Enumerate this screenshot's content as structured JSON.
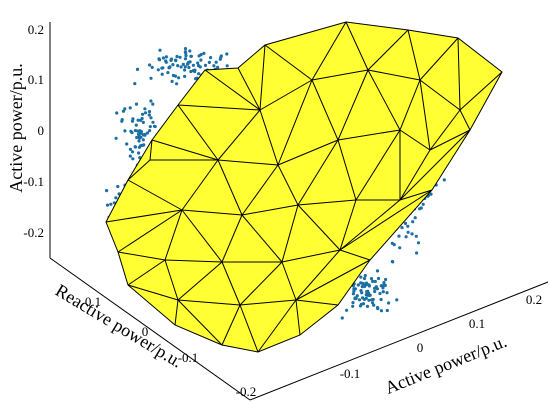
{
  "chart_data": {
    "type": "scatter3d",
    "title": "",
    "z_axis": {
      "label": "Active power/p.u.",
      "ticks": [
        "0.2",
        "0.1",
        "0",
        "-0.1",
        "-0.2"
      ],
      "range": [
        -0.25,
        0.22
      ]
    },
    "y_axis": {
      "label": "Reactive power/p.u.",
      "ticks": [
        "0.1",
        "0",
        "-0.1",
        "-0.2"
      ],
      "range": [
        -0.2,
        0.15
      ]
    },
    "x_axis": {
      "label": "Active power/p.u.",
      "ticks": [
        "-0.1",
        "0",
        "0.1",
        "0.2"
      ],
      "range": [
        -0.15,
        0.2
      ]
    },
    "grid": false,
    "surface": {
      "type": "convex hull (triangulated)",
      "face_color": "#ffff33",
      "edge_color": "#000000"
    },
    "points": {
      "marker_color": "#1b6fa3",
      "approx_count": 500
    }
  }
}
